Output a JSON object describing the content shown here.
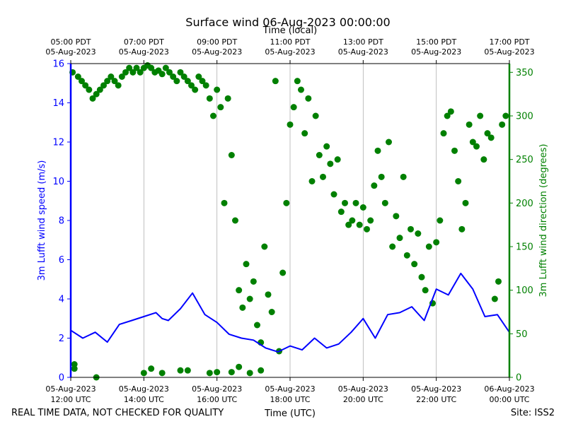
{
  "chart_data": {
    "type": "line+scatter",
    "title": "Surface wind 06-Aug-2023 00:00:00",
    "top_axis_label": "Time (local)",
    "xlabel": "Time (UTC)",
    "ylabel_left": "3m Lufft wind speed (m/s)",
    "ylabel_right": "3m Lufft wind direction (degrees)",
    "ylim_left": [
      0,
      16
    ],
    "ylim_right": [
      0,
      360
    ],
    "xlim_hours": [
      0,
      12
    ],
    "left_ticks": [
      "0",
      "2",
      "4",
      "6",
      "8",
      "10",
      "12",
      "14",
      "16"
    ],
    "right_ticks": [
      "0",
      "50",
      "100",
      "150",
      "200",
      "250",
      "300",
      "350"
    ],
    "bottom_ticks": [
      {
        "l1": "05-Aug-2023",
        "l2": "12:00 UTC"
      },
      {
        "l1": "05-Aug-2023",
        "l2": "14:00 UTC"
      },
      {
        "l1": "05-Aug-2023",
        "l2": "16:00 UTC"
      },
      {
        "l1": "05-Aug-2023",
        "l2": "18:00 UTC"
      },
      {
        "l1": "05-Aug-2023",
        "l2": "20:00 UTC"
      },
      {
        "l1": "05-Aug-2023",
        "l2": "22:00 UTC"
      },
      {
        "l1": "06-Aug-2023",
        "l2": "00:00 UTC"
      }
    ],
    "top_ticks": [
      {
        "l1": "05:00 PDT",
        "l2": "05-Aug-2023"
      },
      {
        "l1": "07:00 PDT",
        "l2": "05-Aug-2023"
      },
      {
        "l1": "09:00 PDT",
        "l2": "05-Aug-2023"
      },
      {
        "l1": "11:00 PDT",
        "l2": "05-Aug-2023"
      },
      {
        "l1": "13:00 PDT",
        "l2": "05-Aug-2023"
      },
      {
        "l1": "15:00 PDT",
        "l2": "05-Aug-2023"
      },
      {
        "l1": "17:00 PDT",
        "l2": "05-Aug-2023"
      }
    ],
    "series": [
      {
        "name": "wind speed (m/s)",
        "axis": "left",
        "color": "#0000ff",
        "style": "line",
        "x_hours": [
          0,
          0.33,
          0.67,
          1,
          1.33,
          1.67,
          2,
          2.33,
          2.5,
          2.67,
          3,
          3.33,
          3.67,
          4,
          4.33,
          4.67,
          5,
          5.33,
          5.67,
          6,
          6.33,
          6.67,
          7,
          7.33,
          7.67,
          8,
          8.33,
          8.67,
          9,
          9.33,
          9.67,
          10,
          10.33,
          10.67,
          11,
          11.33,
          11.67,
          12
        ],
        "values": [
          2.4,
          2.0,
          2.3,
          1.8,
          2.7,
          2.9,
          3.1,
          3.3,
          3.0,
          2.9,
          3.5,
          4.3,
          3.2,
          2.8,
          2.2,
          2.0,
          1.9,
          1.5,
          1.3,
          1.6,
          1.4,
          2.0,
          1.5,
          1.7,
          2.3,
          3.0,
          2.0,
          3.2,
          3.3,
          3.6,
          2.9,
          4.5,
          4.2,
          5.3,
          4.5,
          3.1,
          3.2,
          2.3
        ]
      },
      {
        "name": "wind direction (degrees)",
        "axis": "right",
        "color": "#008000",
        "style": "scatter",
        "x_hours": [
          0.05,
          0.1,
          0.2,
          0.3,
          0.4,
          0.5,
          0.6,
          0.7,
          0.8,
          0.9,
          1.0,
          1.1,
          1.2,
          1.3,
          1.4,
          1.5,
          1.6,
          1.7,
          1.8,
          1.9,
          2.0,
          2.1,
          2.2,
          2.3,
          2.4,
          2.5,
          2.6,
          2.7,
          2.8,
          2.9,
          3.0,
          3.1,
          3.2,
          3.3,
          3.4,
          3.5,
          3.6,
          3.7,
          3.8,
          3.9,
          4.0,
          4.1,
          4.2,
          4.3,
          4.4,
          4.5,
          4.6,
          4.7,
          4.8,
          4.9,
          5.0,
          5.1,
          5.2,
          5.3,
          5.4,
          5.5,
          5.6,
          5.7,
          5.8,
          5.9,
          6.0,
          6.1,
          6.2,
          6.3,
          6.4,
          6.5,
          6.6,
          6.7,
          6.8,
          6.9,
          7.0,
          7.1,
          7.2,
          7.3,
          7.4,
          7.5,
          7.6,
          7.7,
          7.8,
          7.9,
          8.0,
          8.1,
          8.2,
          8.3,
          8.4,
          8.5,
          8.6,
          8.7,
          8.8,
          8.9,
          9.0,
          9.1,
          9.2,
          9.3,
          9.4,
          9.5,
          9.6,
          9.7,
          9.8,
          9.9,
          10.0,
          10.1,
          10.2,
          10.3,
          10.4,
          10.5,
          10.6,
          10.7,
          10.8,
          10.9,
          11.0,
          11.1,
          11.2,
          11.3,
          11.4,
          11.5,
          11.6,
          11.7,
          11.8,
          11.9,
          0.1,
          0.7,
          2.0,
          2.2,
          2.5,
          3.0,
          3.2,
          4.0,
          4.4,
          3.8,
          5.2,
          4.6,
          4.9
        ],
        "values": [
          350,
          10,
          345,
          340,
          335,
          330,
          320,
          325,
          330,
          335,
          340,
          345,
          340,
          335,
          345,
          350,
          355,
          350,
          355,
          350,
          355,
          358,
          355,
          350,
          352,
          348,
          355,
          350,
          345,
          340,
          350,
          345,
          340,
          335,
          330,
          345,
          340,
          335,
          320,
          300,
          330,
          310,
          200,
          320,
          255,
          180,
          100,
          80,
          130,
          90,
          110,
          60,
          40,
          150,
          95,
          75,
          340,
          30,
          120,
          200,
          290,
          310,
          340,
          330,
          280,
          320,
          225,
          300,
          255,
          230,
          265,
          245,
          210,
          250,
          190,
          200,
          175,
          180,
          200,
          175,
          195,
          170,
          180,
          220,
          260,
          230,
          200,
          270,
          150,
          185,
          160,
          230,
          140,
          170,
          130,
          165,
          115,
          100,
          150,
          85,
          155,
          180,
          280,
          300,
          305,
          260,
          225,
          170,
          200,
          290,
          270,
          265,
          300,
          250,
          280,
          275,
          90,
          110,
          290,
          300,
          15,
          0,
          5,
          10,
          5,
          8,
          8,
          6,
          6,
          5,
          8,
          12,
          5
        ]
      }
    ]
  },
  "footer": {
    "left_note": "REAL TIME DATA, NOT CHECKED FOR QUALITY",
    "site": "Site: ISS2"
  }
}
